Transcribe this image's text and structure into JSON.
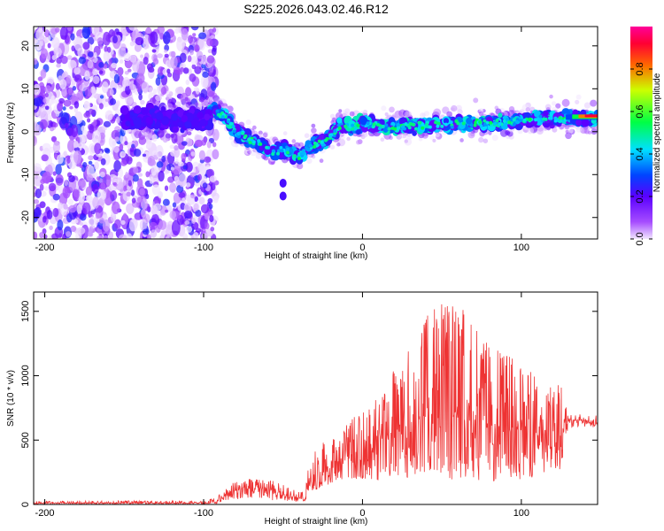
{
  "title": "S225.2026.043.02.46.R12",
  "chart_data": [
    {
      "type": "heatmap",
      "xlabel": "Height of straight line (km)",
      "ylabel": "Frequency (Hz)",
      "xlim": [
        -207,
        148
      ],
      "ylim": [
        -25,
        24.5
      ],
      "xticks": [
        -200,
        -100,
        0,
        100
      ],
      "yticks": [
        20,
        10,
        0,
        -10,
        -20
      ],
      "ridge": {
        "x": [
          -96,
          -90,
          -85,
          -80,
          -75,
          -70,
          -65,
          -60,
          -55,
          -50,
          -45,
          -40,
          -35,
          -30,
          -25,
          -20,
          -15,
          -10,
          -5,
          0,
          10,
          20,
          30,
          40,
          50,
          60,
          70,
          80,
          90,
          100,
          110,
          120,
          130,
          148
        ],
        "freq": [
          5,
          4.5,
          3,
          0,
          -1,
          -2,
          -3,
          -4,
          -5,
          -4,
          -4.5,
          -6,
          -4,
          -3,
          -2.5,
          -1,
          1,
          2,
          1,
          2,
          1.5,
          1,
          1.5,
          1.5,
          1.5,
          2,
          2,
          2,
          2,
          2.5,
          3,
          3,
          3,
          3.2
        ]
      },
      "colorbar": {
        "label": "Normalized spectral amplitude",
        "ticks": [
          "0.0",
          "0.2",
          "0.4",
          "0.6",
          "0.8"
        ],
        "range": [
          0,
          1
        ]
      }
    },
    {
      "type": "line",
      "xlabel": "Height of straight line (km)",
      "ylabel": "SNR (10 * v/v)",
      "xlim": [
        -207,
        148
      ],
      "ylim": [
        0,
        1650
      ],
      "xticks": [
        -200,
        -100,
        0,
        100
      ],
      "yticks": [
        0,
        500,
        1000,
        1500
      ],
      "color": "#ee3333",
      "envelope": {
        "x": [
          -207,
          -150,
          -100,
          -92,
          -85,
          -75,
          -65,
          -55,
          -45,
          -36,
          -33,
          -25,
          -15,
          -5,
          5,
          15,
          25,
          35,
          45,
          55,
          65,
          75,
          85,
          95,
          105,
          115,
          125,
          130,
          148
        ],
        "lower": [
          5,
          5,
          5,
          5,
          30,
          40,
          40,
          30,
          20,
          20,
          80,
          140,
          170,
          200,
          180,
          190,
          200,
          200,
          210,
          190,
          200,
          180,
          170,
          190,
          200,
          230,
          250,
          600,
          600
        ],
        "upper": [
          25,
          30,
          25,
          60,
          160,
          200,
          200,
          190,
          120,
          100,
          400,
          500,
          550,
          700,
          800,
          1000,
          1100,
          1400,
          1600,
          1650,
          1500,
          1300,
          1200,
          1150,
          1050,
          1000,
          920,
          700,
          700
        ],
        "typical": [
          10,
          12,
          10,
          20,
          80,
          120,
          130,
          100,
          60,
          40,
          200,
          260,
          320,
          400,
          420,
          520,
          580,
          650,
          700,
          720,
          680,
          640,
          600,
          580,
          560,
          540,
          520,
          650,
          650
        ]
      }
    }
  ]
}
